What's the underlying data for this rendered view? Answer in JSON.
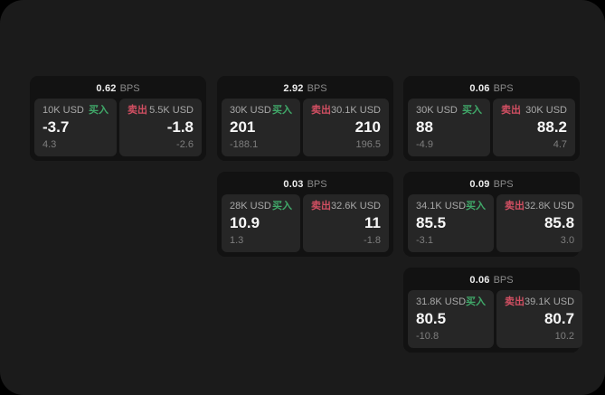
{
  "theme": {
    "panel_bg": "#1b1b1b",
    "card_bg": "#121212",
    "cell_bg": "#262626",
    "buy_color": "#40a869",
    "sell_color": "#d14f62"
  },
  "labels": {
    "bps_suffix": "BPS",
    "buy": "买入",
    "sell": "卖出"
  },
  "cards": [
    {
      "col": 0,
      "row": 0,
      "bps": "0.62",
      "buy": {
        "amount": "10K USD",
        "value": "-3.7",
        "sub": "4.3"
      },
      "sell": {
        "amount": "5.5K USD",
        "value": "-1.8",
        "sub": "-2.6"
      }
    },
    {
      "col": 1,
      "row": 0,
      "bps": "2.92",
      "buy": {
        "amount": "30K USD",
        "value": "201",
        "sub": "-188.1"
      },
      "sell": {
        "amount": "30.1K USD",
        "value": "210",
        "sub": "196.5"
      }
    },
    {
      "col": 2,
      "row": 0,
      "bps": "0.06",
      "buy": {
        "amount": "30K USD",
        "value": "88",
        "sub": "-4.9"
      },
      "sell": {
        "amount": "30K USD",
        "value": "88.2",
        "sub": "4.7"
      }
    },
    {
      "col": 1,
      "row": 1,
      "bps": "0.03",
      "buy": {
        "amount": "28K USD",
        "value": "10.9",
        "sub": "1.3"
      },
      "sell": {
        "amount": "32.6K USD",
        "value": "11",
        "sub": "-1.8"
      }
    },
    {
      "col": 2,
      "row": 1,
      "bps": "0.09",
      "buy": {
        "amount": "34.1K USD",
        "value": "85.5",
        "sub": "-3.1"
      },
      "sell": {
        "amount": "32.8K USD",
        "value": "85.8",
        "sub": "3.0"
      }
    },
    {
      "col": 2,
      "row": 2,
      "bps": "0.06",
      "buy": {
        "amount": "31.8K USD",
        "value": "80.5",
        "sub": "-10.8"
      },
      "sell": {
        "amount": "39.1K USD",
        "value": "80.7",
        "sub": "10.2"
      }
    }
  ]
}
